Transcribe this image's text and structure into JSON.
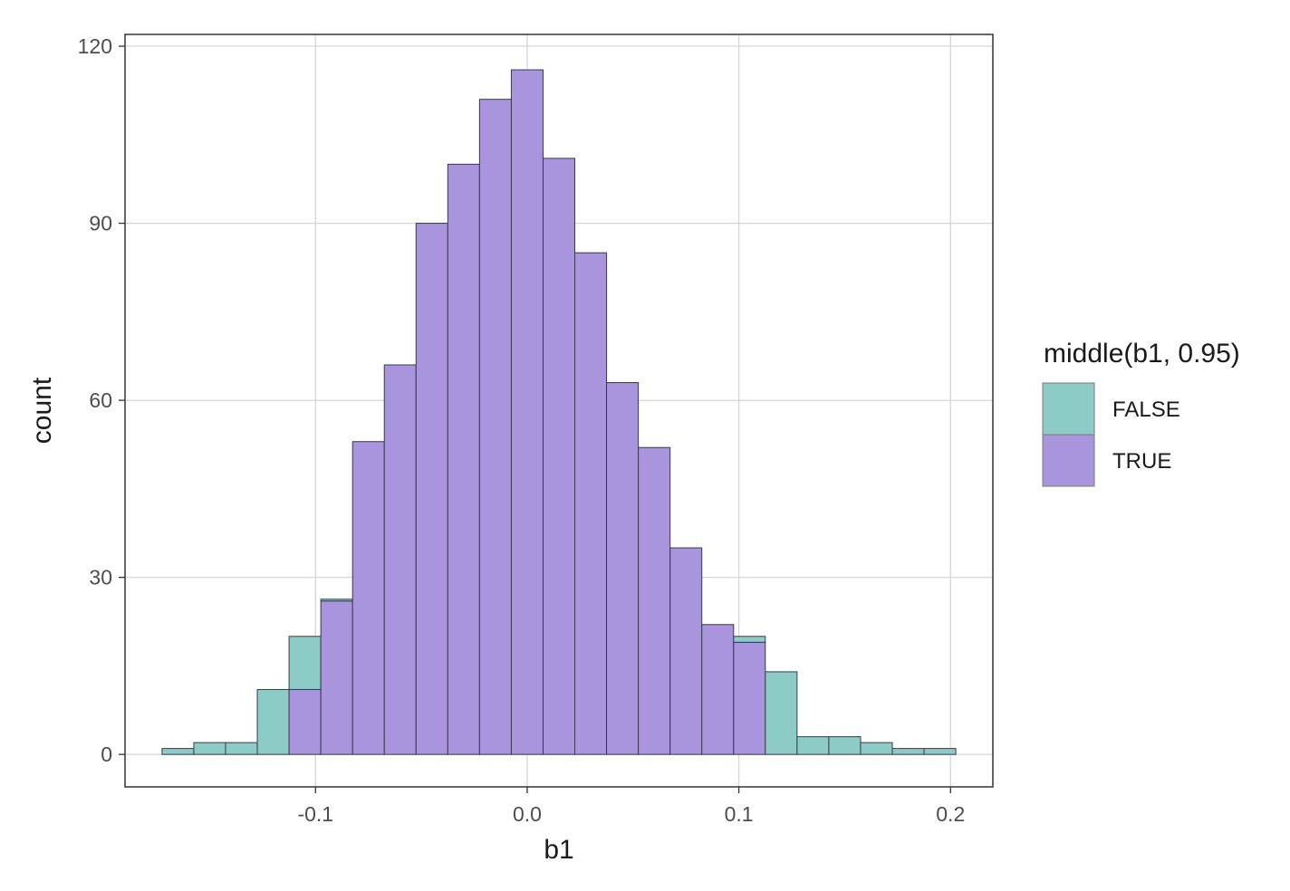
{
  "chart_data": {
    "type": "bar",
    "subtype": "stacked-histogram",
    "xlabel": "b1",
    "ylabel": "count",
    "xlim": [
      -0.19,
      0.22
    ],
    "ylim": [
      -5.5,
      122
    ],
    "x_ticks": [
      -0.1,
      0.0,
      0.1,
      0.2
    ],
    "x_tick_labels": [
      "-0.1",
      "0.0",
      "0.1",
      "0.2"
    ],
    "y_ticks": [
      0,
      30,
      60,
      90,
      120
    ],
    "y_tick_labels": [
      "0",
      "30",
      "60",
      "90",
      "120"
    ],
    "grid": true,
    "legend_position": "right",
    "legend_title": "middle(b1, 0.95)",
    "bin_width": 0.015,
    "bin_centers": [
      -0.165,
      -0.15,
      -0.135,
      -0.12,
      -0.105,
      -0.09,
      -0.075,
      -0.06,
      -0.045,
      -0.03,
      -0.015,
      0.0,
      0.015,
      0.03,
      0.045,
      0.06,
      0.075,
      0.09,
      0.105,
      0.12,
      0.135,
      0.15,
      0.165,
      0.18,
      0.195
    ],
    "series": [
      {
        "name": "FALSE",
        "color": "#8ccbc6",
        "values": [
          1,
          2,
          2,
          11,
          9,
          0.3,
          0,
          0,
          0,
          0,
          0,
          0,
          0,
          0,
          0,
          0,
          0,
          0,
          1,
          14,
          3,
          3,
          2,
          1,
          1
        ]
      },
      {
        "name": "TRUE",
        "color": "#a995de",
        "values": [
          0,
          0,
          0,
          0,
          11,
          26,
          53,
          66,
          90,
          100,
          111,
          116,
          101,
          85,
          63,
          52,
          35,
          22,
          19,
          0,
          0,
          0,
          0,
          0,
          0
        ]
      }
    ]
  }
}
